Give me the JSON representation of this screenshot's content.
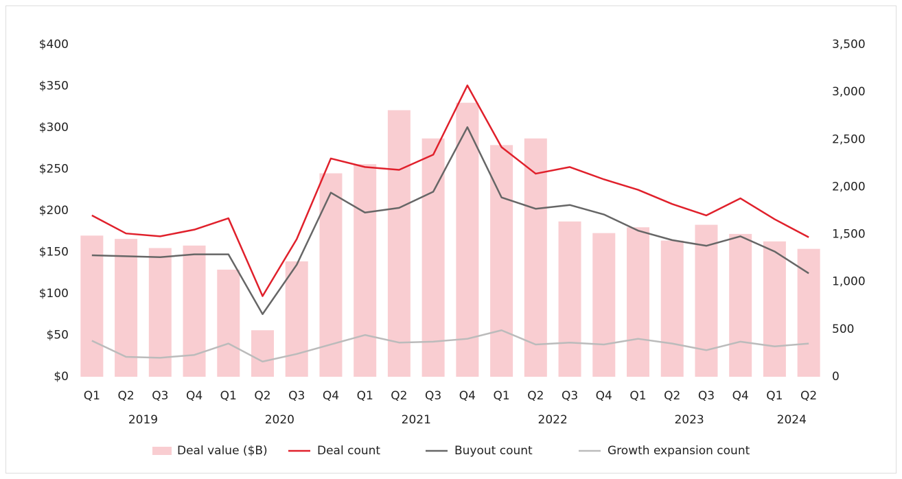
{
  "chart_data": {
    "type": "bar",
    "categories": [
      "Q1",
      "Q2",
      "Q3",
      "Q4",
      "Q1",
      "Q2",
      "Q3",
      "Q4",
      "Q1",
      "Q2",
      "Q3",
      "Q4",
      "Q1",
      "Q2",
      "Q3",
      "Q4",
      "Q1",
      "Q2",
      "Q3",
      "Q4",
      "Q1",
      "Q2"
    ],
    "groups": [
      {
        "label": "2019",
        "size": 4
      },
      {
        "label": "2020",
        "size": 4
      },
      {
        "label": "2021",
        "size": 4
      },
      {
        "label": "2022",
        "size": 4
      },
      {
        "label": "2023",
        "size": 4
      },
      {
        "label": "2024",
        "size": 2
      }
    ],
    "ylim": [
      0,
      400
    ],
    "yticks": [
      {
        "value": 0,
        "label": "$0"
      },
      {
        "value": 50,
        "label": "$50"
      },
      {
        "value": 100,
        "label": "$100"
      },
      {
        "value": 150,
        "label": "$150"
      },
      {
        "value": 200,
        "label": "$200"
      },
      {
        "value": 250,
        "label": "$250"
      },
      {
        "value": 300,
        "label": "$300"
      },
      {
        "value": 350,
        "label": "$350"
      },
      {
        "value": 400,
        "label": "$400"
      }
    ],
    "y2lim": [
      0,
      3500
    ],
    "y2ticks": [
      0,
      500,
      {
        "value": 1000,
        "label": "1,000"
      },
      {
        "value": 1500,
        "label": "1,500"
      },
      {
        "value": 2000,
        "label": "2,000"
      },
      {
        "value": 2500,
        "label": "2,500"
      },
      {
        "value": 3000,
        "label": "3,000"
      },
      {
        "value": 3500,
        "label": "3,500"
      }
    ],
    "legend": "bottom",
    "series": [
      {
        "name": "Deal value ($B)",
        "type": "bar",
        "color": "#f9cdd1",
        "values": [
          170,
          166,
          155,
          158,
          129,
          56,
          139,
          245,
          256,
          321,
          287,
          330,
          279,
          287,
          187,
          173,
          180,
          164,
          183,
          172,
          163,
          154
        ]
      },
      {
        "name": "Deal count",
        "type": "line",
        "axis": "y2",
        "color": "#e0202b",
        "values": [
          1700,
          1510,
          1480,
          1550,
          1670,
          850,
          1450,
          2300,
          2210,
          2180,
          2340,
          3070,
          2420,
          2140,
          2210,
          2080,
          1970,
          1820,
          1700,
          1880,
          1660,
          1470
        ]
      },
      {
        "name": "Buyout count",
        "type": "line",
        "axis": "y2",
        "color": "#666666",
        "values": [
          1280,
          1270,
          1260,
          1290,
          1290,
          660,
          1180,
          1940,
          1730,
          1780,
          1950,
          2630,
          1890,
          1770,
          1810,
          1710,
          1540,
          1440,
          1380,
          1480,
          1320,
          1090
        ]
      },
      {
        "name": "Growth expansion count",
        "type": "line",
        "axis": "y2",
        "color": "#bbbbbb",
        "values": [
          380,
          210,
          200,
          230,
          350,
          160,
          240,
          340,
          440,
          360,
          370,
          400,
          490,
          340,
          360,
          340,
          400,
          350,
          280,
          370,
          320,
          350
        ]
      }
    ]
  }
}
